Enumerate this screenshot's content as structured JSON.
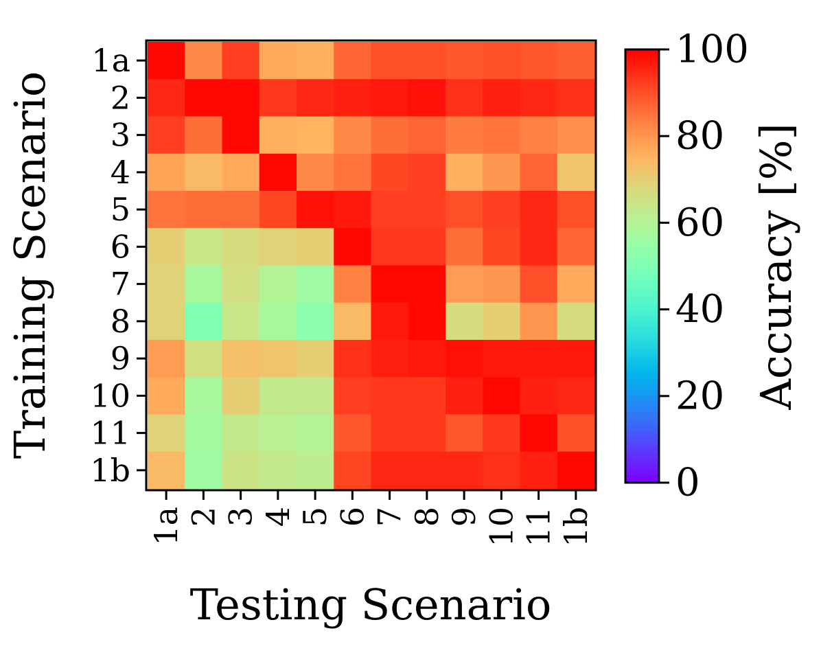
{
  "chart_data": {
    "type": "heatmap",
    "xlabel": "Testing Scenario",
    "ylabel": "Training Scenario",
    "x_categories": [
      "1a",
      "2",
      "3",
      "4",
      "5",
      "6",
      "7",
      "8",
      "9",
      "10",
      "11",
      "1b"
    ],
    "y_categories": [
      "1a",
      "2",
      "3",
      "4",
      "5",
      "6",
      "7",
      "8",
      "9",
      "10",
      "11",
      "1b"
    ],
    "values": [
      [
        99,
        82,
        92,
        77,
        76,
        87,
        90,
        90,
        89,
        90,
        89,
        88
      ],
      [
        95,
        99,
        99,
        93,
        95,
        96,
        97,
        98,
        94,
        96,
        95,
        94
      ],
      [
        92,
        86,
        99,
        76,
        75,
        82,
        86,
        87,
        84,
        85,
        83,
        81
      ],
      [
        78,
        74,
        77,
        99,
        82,
        85,
        91,
        92,
        76,
        80,
        87,
        72
      ],
      [
        85,
        86,
        86,
        91,
        98,
        97,
        92,
        92,
        90,
        92,
        95,
        90
      ],
      [
        70,
        64,
        67,
        69,
        70,
        99,
        93,
        93,
        86,
        91,
        95,
        87
      ],
      [
        69,
        58,
        66,
        60,
        56,
        83,
        99,
        99,
        79,
        80,
        90,
        77
      ],
      [
        69,
        50,
        64,
        58,
        53,
        74,
        97,
        99,
        67,
        70,
        80,
        67
      ],
      [
        79,
        66,
        73,
        72,
        70,
        94,
        96,
        97,
        98,
        97,
        97,
        97
      ],
      [
        77,
        58,
        70,
        63,
        63,
        92,
        93,
        93,
        96,
        99,
        96,
        95
      ],
      [
        69,
        57,
        63,
        61,
        60,
        89,
        93,
        93,
        89,
        93,
        99,
        90
      ],
      [
        74,
        56,
        65,
        63,
        62,
        91,
        95,
        95,
        95,
        94,
        96,
        99
      ]
    ],
    "vmin": 0,
    "vmax": 100,
    "colormap": "rainbow",
    "colorbar_label": "Accuracy [%]",
    "colorbar_ticks": [
      "0",
      "20",
      "40",
      "60",
      "80",
      "100"
    ],
    "grid": false
  }
}
